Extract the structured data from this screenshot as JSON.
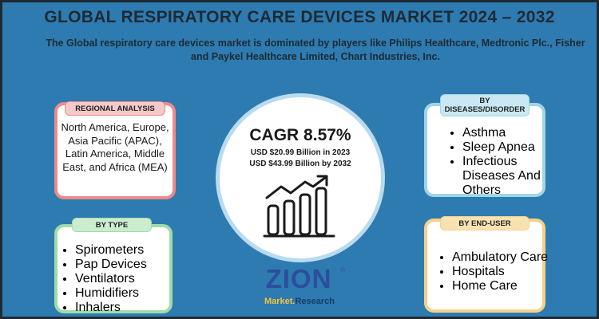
{
  "title": "GLOBAL RESPIRATORY CARE DEVICES MARKET 2024 – 2032",
  "subtitle": "The Global respiratory care devices market is dominated by players like Philips Healthcare, Medtronic Plc., Fisher and Paykel Healthcare Limited, Chart Industries, Inc.",
  "regional": {
    "header": "REGIONAL ANALYSIS",
    "text": "North America, Europe, Asia Pacific (APAC), Latin America, Middle East, and Africa (MEA)"
  },
  "diseases": {
    "header": "BY DISEASES/DISORDER",
    "items": [
      "Asthma",
      "Sleep Apnea",
      "Infectious Diseases And Others"
    ]
  },
  "type": {
    "header": "BY TYPE",
    "items": [
      "Spirometers",
      "Pap Devices",
      "Ventilators",
      "Humidifiers",
      "Inhalers"
    ]
  },
  "end_user": {
    "header": "BY END-USER",
    "items": [
      "Ambulatory Care",
      "Hospitals",
      "Home Care"
    ]
  },
  "center": {
    "cagr": "CAGR 8.57%",
    "value_2023": "USD $20.99 Billion in 2023",
    "value_2032": "USD $43.99 Billion by 2032",
    "icon": "growth-chart-icon"
  },
  "logo": {
    "main": "ZION",
    "market": "Market.",
    "research": "Research",
    "mark": "®"
  },
  "colors": {
    "background": "#2d7bb1",
    "regional_border": "#ee8a8a",
    "disease_border": "#9fd6e4",
    "type_border": "#9fdca7",
    "enduser_border": "#f5d188",
    "logo_blue": "#2c4e9c",
    "logo_gold": "#f6c13a"
  }
}
